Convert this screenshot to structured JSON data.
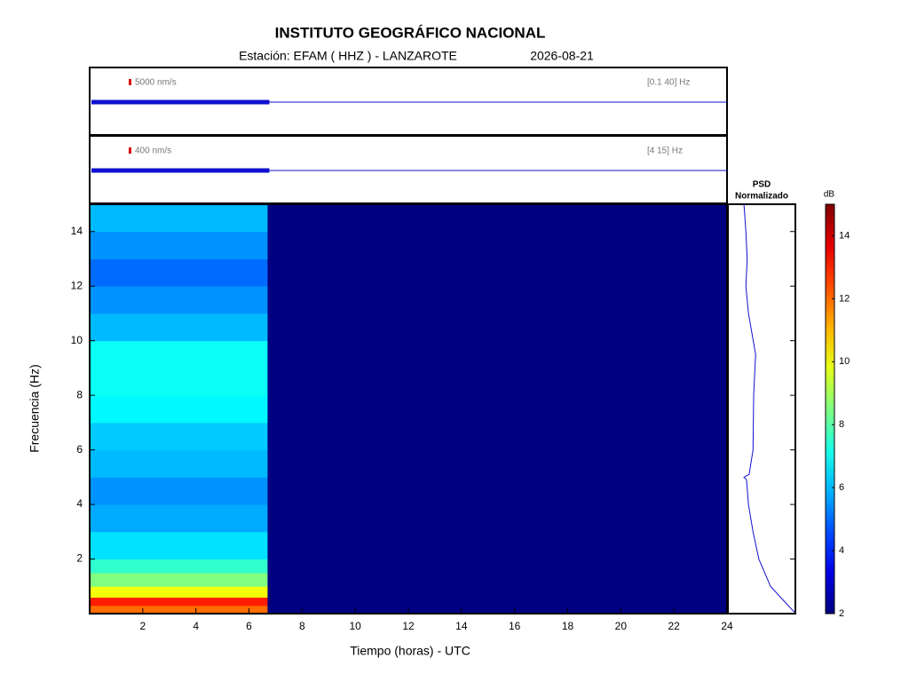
{
  "chart_data": {
    "type": "spectrogram",
    "title": "INSTITUTO GEOGRÁFICO NACIONAL",
    "subtitle_station": "Estación:  EFAM ( HHZ ) - LANZAROTE",
    "subtitle_date": "2026-08-21",
    "x_label": "Tiempo (horas) - UTC",
    "y_label": "Frecuencia  (Hz)",
    "xlim": [
      0,
      24
    ],
    "xticks": [
      2,
      4,
      6,
      8,
      10,
      12,
      14,
      16,
      18,
      20,
      22,
      24
    ],
    "ylim": [
      0,
      15
    ],
    "yticks": [
      2,
      4,
      6,
      8,
      10,
      12,
      14
    ],
    "traces": [
      {
        "scale_label": "5000 nm/s",
        "band_label": "[0.1 40] Hz",
        "active_x": [
          0,
          6.7
        ]
      },
      {
        "scale_label": "400 nm/s",
        "band_label": "[4 15] Hz",
        "active_x": [
          0,
          6.7
        ]
      }
    ],
    "spectrogram": {
      "x_bins": [
        0,
        6.7,
        24
      ],
      "y_bins": [
        0,
        0.3,
        0.6,
        1,
        1.5,
        2,
        3,
        4,
        5,
        6,
        7,
        8,
        9,
        10,
        11,
        12,
        13,
        14,
        15
      ],
      "values": [
        [
          12,
          2
        ],
        [
          13,
          2
        ],
        [
          10,
          2
        ],
        [
          8.5,
          2
        ],
        [
          7.5,
          2
        ],
        [
          6.5,
          2
        ],
        [
          5.8,
          2
        ],
        [
          5.5,
          2
        ],
        [
          6,
          2
        ],
        [
          6.2,
          2
        ],
        [
          6.8,
          2
        ],
        [
          7,
          2
        ],
        [
          7,
          2
        ],
        [
          6,
          2
        ],
        [
          5.5,
          2
        ],
        [
          5,
          2
        ],
        [
          5.5,
          2
        ],
        [
          6,
          2
        ]
      ]
    },
    "psd": {
      "title": "PSD",
      "subtitle": "Normalizado",
      "xlim": [
        0,
        1
      ],
      "freq": [
        0.05,
        0.3,
        1,
        2,
        3,
        4,
        4.9,
        5,
        5.1,
        6,
        8,
        9.5,
        11,
        12,
        13,
        14,
        15
      ],
      "values": [
        1.0,
        0.9,
        0.63,
        0.45,
        0.36,
        0.29,
        0.26,
        0.22,
        0.3,
        0.36,
        0.37,
        0.4,
        0.29,
        0.25,
        0.27,
        0.25,
        0.22
      ]
    },
    "colorbar": {
      "label": "dB",
      "clim": [
        2,
        15
      ],
      "ticks": [
        2,
        4,
        6,
        8,
        10,
        12,
        14
      ]
    }
  }
}
